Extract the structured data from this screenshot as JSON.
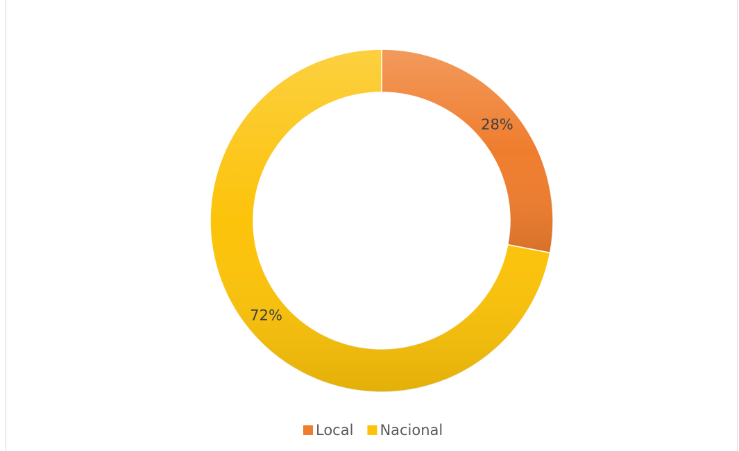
{
  "chart_data": {
    "type": "donut",
    "categories": [
      "Local",
      "Nacional"
    ],
    "values": [
      28,
      72
    ],
    "value_labels": [
      "28%",
      "72%"
    ],
    "colors": [
      "#ef7d2e",
      "#fcc30a"
    ],
    "legend": "bottom"
  }
}
